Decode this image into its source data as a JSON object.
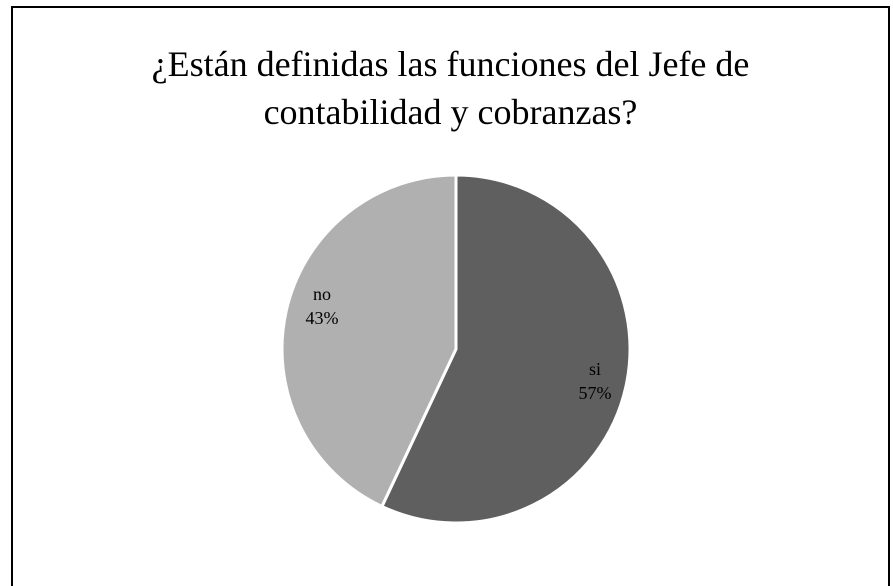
{
  "chart_data": {
    "type": "pie",
    "title": "¿Están definidas las funciones del Jefe de contabilidad y cobranzas?",
    "title_lines": [
      "¿Están definidas las funciones del Jefe de",
      "contabilidad y cobranzas?"
    ],
    "slices": [
      {
        "name": "si",
        "value": 57,
        "label": "57%",
        "color": "#5f5f5f"
      },
      {
        "name": "no",
        "value": 43,
        "label": "43%",
        "color": "#b0b0b0"
      }
    ],
    "start": "12 o'clock",
    "direction": "clockwise",
    "separator_color": "#ffffff"
  }
}
